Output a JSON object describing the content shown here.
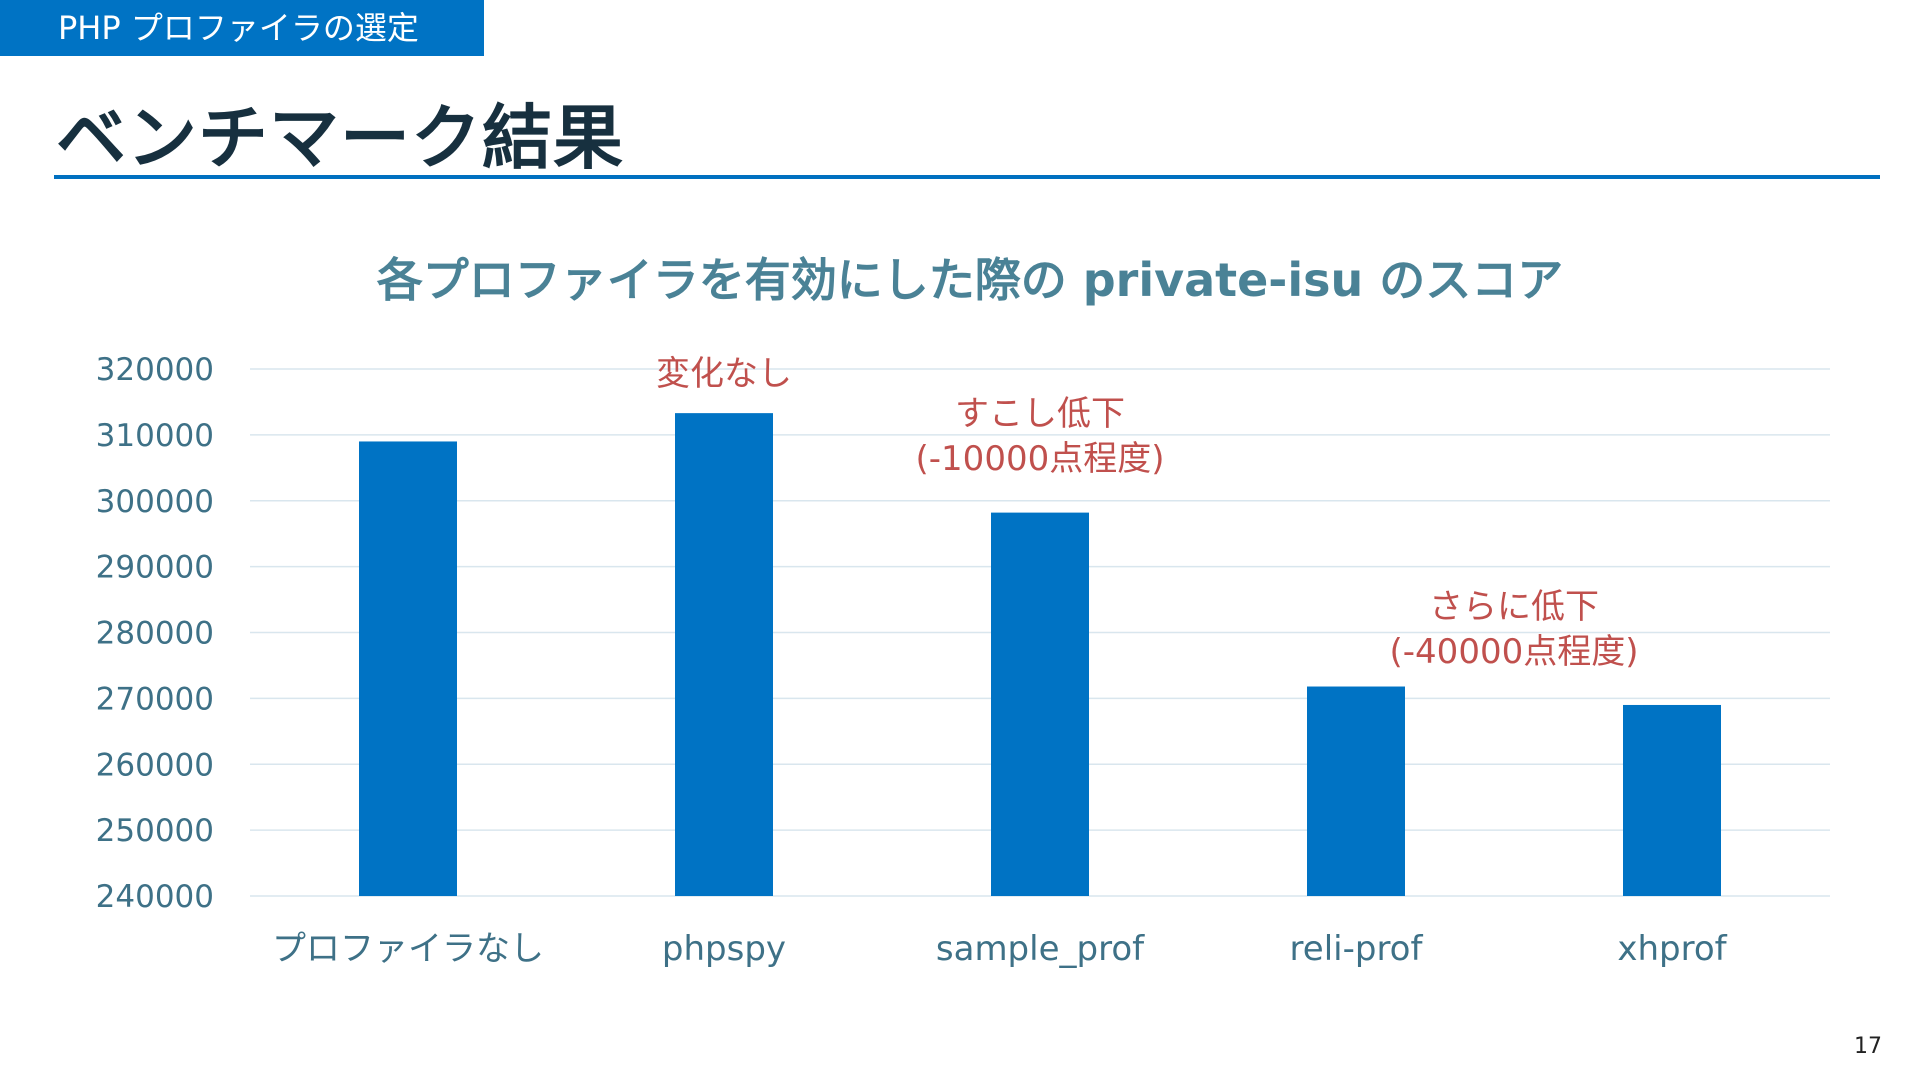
{
  "header": {
    "section_tag": "PHP プロファイラの選定",
    "title": "ベンチマーク結果",
    "page_number": "17"
  },
  "colors": {
    "bar": "#0073c4",
    "axis_text": "#3e7187",
    "title_text": "#4a8296",
    "annotation_text": "#c0504d",
    "gridline": "#d9e6ee"
  },
  "chart_data": {
    "type": "bar",
    "title": "各プロファイラを有効にした際の private-isu のスコア",
    "categories": [
      "プロファイラなし",
      "phpspy",
      "sample_prof",
      "reli-prof",
      "xhprof"
    ],
    "values": [
      309000,
      313300,
      298200,
      271800,
      269000
    ],
    "ylim": [
      240000,
      320000
    ],
    "yticks": [
      "320000",
      "310000",
      "300000",
      "290000",
      "280000",
      "270000",
      "260000",
      "250000",
      "240000"
    ],
    "grid": true,
    "annotations": [
      {
        "lines": [
          "変化なし"
        ],
        "category": "phpspy"
      },
      {
        "lines": [
          "すこし低下",
          "(-10000点程度)"
        ],
        "category": "sample_prof"
      },
      {
        "lines": [
          "さらに低下",
          "(-40000点程度)"
        ],
        "category": "reli-prof"
      }
    ]
  }
}
